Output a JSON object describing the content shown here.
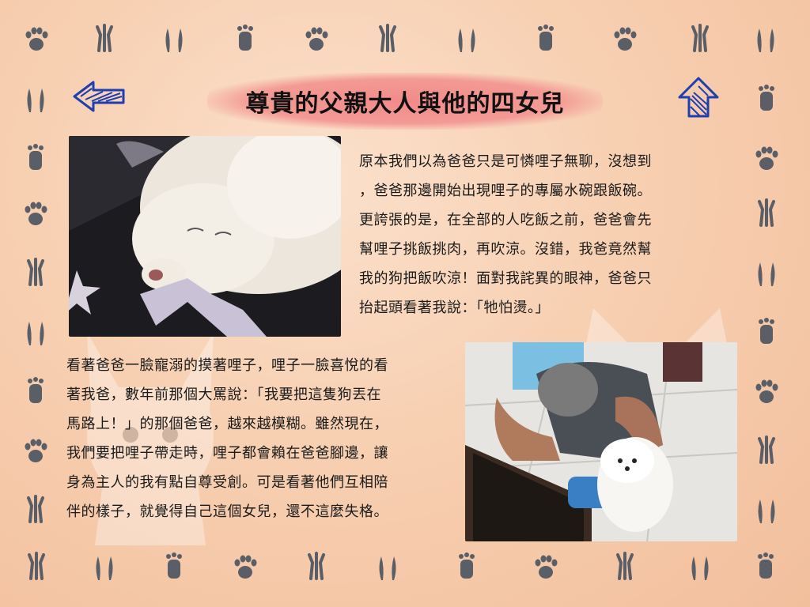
{
  "title": "尊貴的父親大人與他的四女兒",
  "nav": {
    "back_icon": "left-arrow-icon",
    "home_icon": "up-arrow-icon"
  },
  "colors": {
    "background": "#f6c9a8",
    "title_splash": "#f28b8b",
    "arrow": "#1f3fb0",
    "paw": "#5a5e66"
  },
  "paragraph1": {
    "lines": [
      "原本我們以為爸爸只是可憐哩子無聊，沒想到",
      "，爸爸那邊開始出現哩子的專屬水碗跟飯碗。",
      "更誇張的是，在全部的人吃飯之前，爸爸會先",
      "幫哩子挑飯挑肉，再吹涼。沒錯，我爸竟然幫",
      "我的狗把飯吹涼！面對我詫異的眼神，爸爸只",
      "抬起頭看著我說：「牠怕燙。」"
    ]
  },
  "paragraph2": {
    "lines": [
      "看著爸爸一臉寵溺的摸著哩子，哩子一臉喜悅的看",
      "著我爸，數年前那個大罵說：「我要把這隻狗丟在",
      "馬路上！」的那個爸爸，越來越模糊。雖然現在，",
      "我們要把哩子帶走時，哩子都會賴在爸爸腳邊，讓",
      "身為主人的我有點自尊受創。可是看著他們互相陪",
      "伴的樣子，就覺得自己這個女兒，還不這麼失格。"
    ]
  },
  "photos": {
    "top": "sleeping-white-dog-photo",
    "bottom": "father-holding-dog-photo"
  }
}
